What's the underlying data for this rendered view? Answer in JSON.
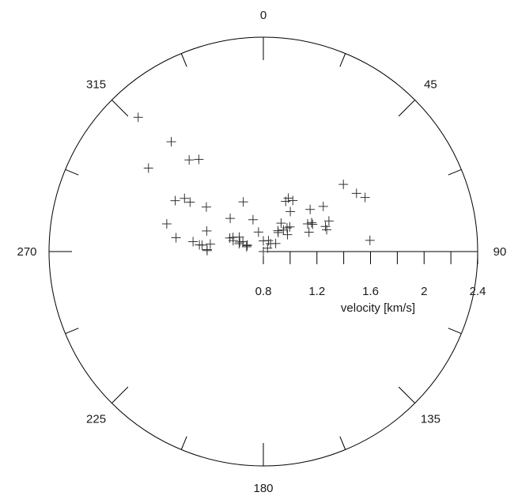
{
  "chart_data": {
    "type": "scatter",
    "coordinate_system": "polar",
    "angle_unit": "degrees",
    "angle_zero": "top",
    "angle_direction": "clockwise",
    "angle_labels": [
      "0",
      "45",
      "90",
      "135",
      "180",
      "225",
      "270",
      "315"
    ],
    "radial_axis": {
      "label": "velocity [km/s]",
      "range": [
        0.8,
        2.4
      ],
      "ticks": [
        0.8,
        1.2,
        1.6,
        2.0,
        2.4
      ],
      "tick_labels": [
        "0.8",
        "1.2",
        "1.6",
        "2",
        "2.4"
      ],
      "minor_step": 0.2
    },
    "grid": false,
    "points": [
      {
        "theta": 317,
        "v": 2.17
      },
      {
        "theta": 320,
        "v": 1.87
      },
      {
        "theta": 321,
        "v": 1.68
      },
      {
        "theta": 325,
        "v": 1.64
      },
      {
        "theta": 306,
        "v": 1.86
      },
      {
        "theta": 300,
        "v": 1.56
      },
      {
        "theta": 304,
        "v": 1.51
      },
      {
        "theta": 304,
        "v": 1.46
      },
      {
        "theta": 308,
        "v": 1.34
      },
      {
        "theta": 286,
        "v": 1.55
      },
      {
        "theta": 290,
        "v": 1.25
      },
      {
        "theta": 279,
        "v": 1.46
      },
      {
        "theta": 278,
        "v": 1.33
      },
      {
        "theta": 276,
        "v": 1.28
      },
      {
        "theta": 276,
        "v": 1.26
      },
      {
        "theta": 278,
        "v": 1.2
      },
      {
        "theta": 272,
        "v": 1.22
      },
      {
        "theta": 271,
        "v": 1.22
      },
      {
        "theta": 292,
        "v": 1.07
      },
      {
        "theta": 295,
        "v": 1.05
      },
      {
        "theta": 290,
        "v": 1.04
      },
      {
        "theta": 292,
        "v": 0.99
      },
      {
        "theta": 288,
        "v": 0.99
      },
      {
        "theta": 301,
        "v": 1.01
      },
      {
        "theta": 296,
        "v": 0.97
      },
      {
        "theta": 290,
        "v": 0.93
      },
      {
        "theta": 292,
        "v": 0.93
      },
      {
        "theta": 315,
        "v": 1.15
      },
      {
        "theta": 338,
        "v": 1.2
      },
      {
        "theta": 342,
        "v": 1.05
      },
      {
        "theta": 346,
        "v": 0.95
      },
      {
        "theta": 286,
        "v": 0.93
      },
      {
        "theta": 24,
        "v": 1.21
      },
      {
        "theta": 25,
        "v": 1.24
      },
      {
        "theta": 30,
        "v": 1.24
      },
      {
        "theta": 34,
        "v": 1.16
      },
      {
        "theta": 53,
        "v": 1.36
      },
      {
        "theta": 48,
        "v": 1.27
      },
      {
        "theta": 58,
        "v": 1.62
      },
      {
        "theta": 50,
        "v": 1.58
      },
      {
        "theta": 62,
        "v": 1.66
      },
      {
        "theta": 32,
        "v": 1.05
      },
      {
        "theta": 38,
        "v": 0.98
      },
      {
        "theta": 35,
        "v": 0.99
      },
      {
        "theta": 43,
        "v": 1.02
      },
      {
        "theta": 59,
        "v": 1.22
      },
      {
        "theta": 61,
        "v": 1.22
      },
      {
        "theta": 58,
        "v": 1.19
      },
      {
        "theta": 65,
        "v": 1.34
      },
      {
        "theta": 71,
        "v": 1.3
      },
      {
        "theta": 68,
        "v": 1.3
      },
      {
        "theta": 67,
        "v": 1.17
      },
      {
        "theta": 47,
        "v": 1.07
      },
      {
        "theta": 45,
        "v": 1.05
      },
      {
        "theta": 55,
        "v": 1.02
      },
      {
        "theta": 25,
        "v": 0.89
      },
      {
        "theta": 57,
        "v": 0.91
      },
      {
        "theta": 42,
        "v": 0.88
      },
      {
        "theta": 51,
        "v": 0.84
      },
      {
        "theta": 0,
        "v": 0.88
      },
      {
        "theta": 15,
        "v": 0.8
      },
      {
        "theta": 84,
        "v": 1.6
      }
    ]
  }
}
